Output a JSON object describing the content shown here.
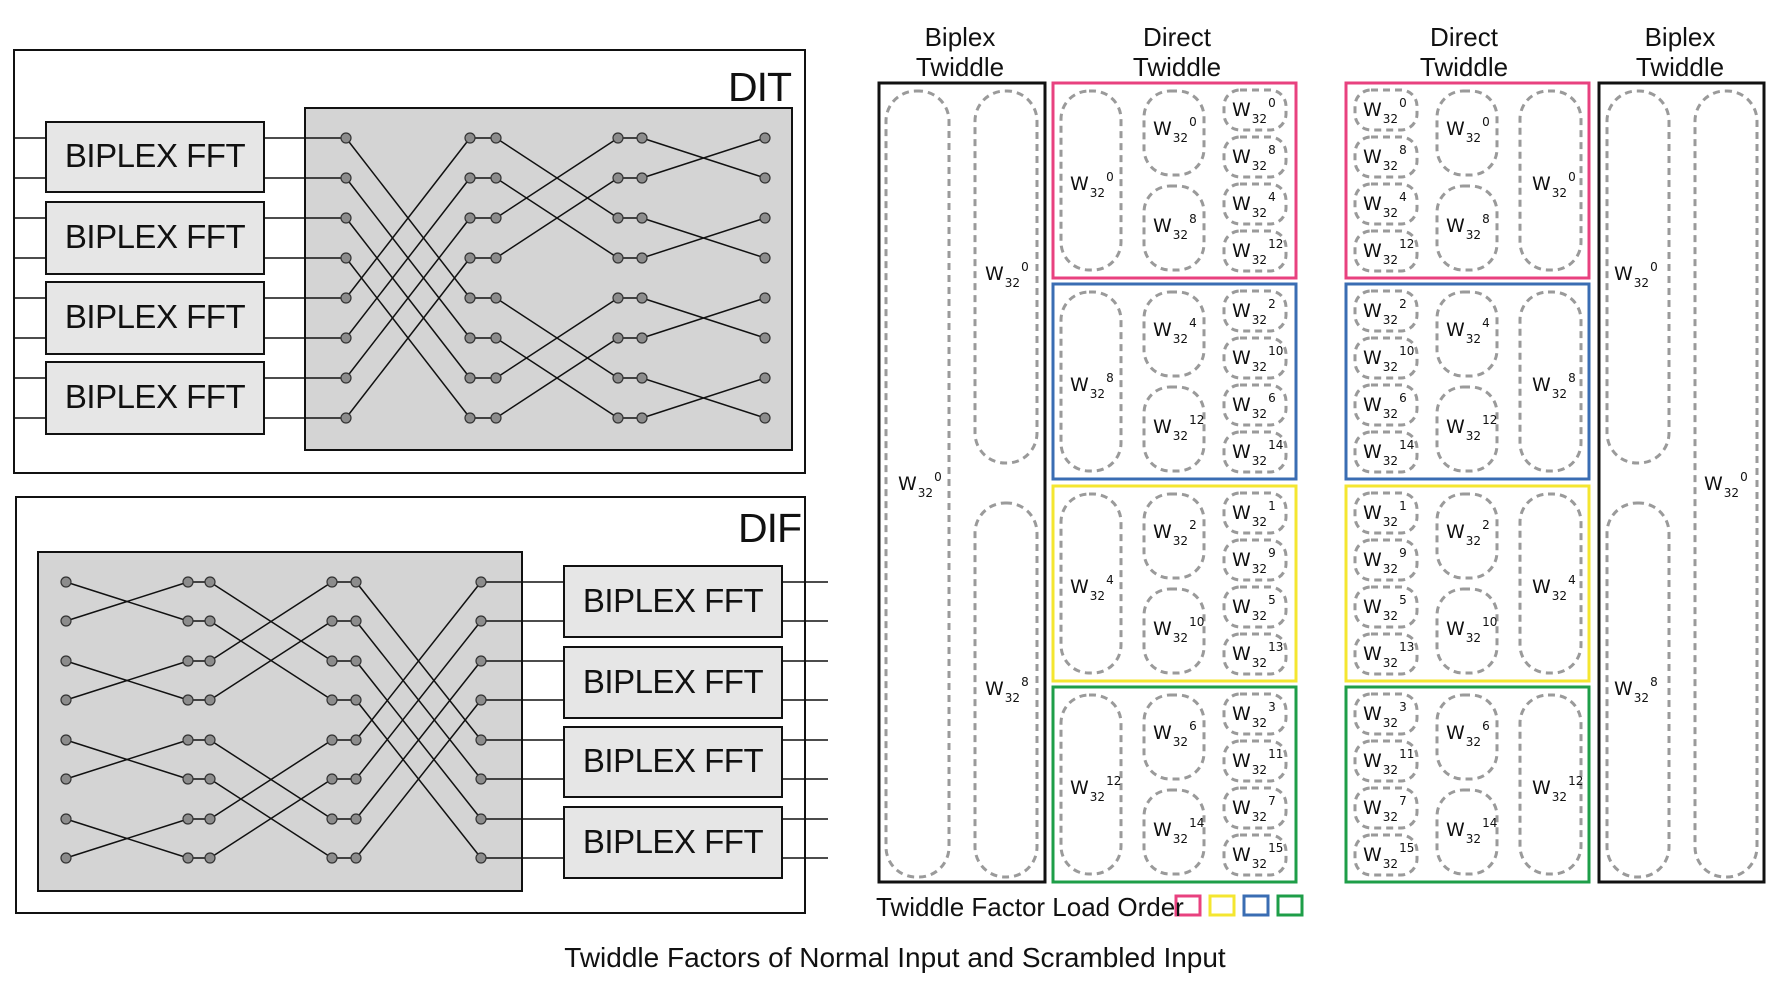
{
  "dit": {
    "title": "DIT",
    "block_label": "BIPLEX FFT"
  },
  "dif": {
    "title": "DIF",
    "block_label": "BIPLEX FFT"
  },
  "headers": {
    "biplex_twiddle": [
      "Biplex",
      "Twiddle"
    ],
    "direct_twiddle": [
      "Direct",
      "Twiddle"
    ]
  },
  "twiddle_base": "W",
  "twiddle_sub": "32",
  "normal_table": {
    "biplex_outer": [
      "0"
    ],
    "biplex_inner": [
      "0",
      "8"
    ],
    "groups": [
      {
        "color": "#e8417f",
        "col1": [
          "0"
        ],
        "col2": [
          "0",
          "8"
        ],
        "col3": [
          "0",
          "8",
          "4",
          "12"
        ]
      },
      {
        "color": "#3a6db3",
        "col1": [
          "8"
        ],
        "col2": [
          "4",
          "12"
        ],
        "col3": [
          "2",
          "10",
          "6",
          "14"
        ]
      },
      {
        "color": "#f4e630",
        "col1": [
          "4"
        ],
        "col2": [
          "2",
          "10"
        ],
        "col3": [
          "1",
          "9",
          "5",
          "13"
        ]
      },
      {
        "color": "#1e9e48",
        "col1": [
          "12"
        ],
        "col2": [
          "6",
          "14"
        ],
        "col3": [
          "3",
          "11",
          "7",
          "15"
        ]
      }
    ]
  },
  "scrambled_table": {
    "biplex_inner": [
      "0",
      "8"
    ],
    "biplex_outer": [
      "0"
    ],
    "groups": [
      {
        "color": "#e8417f",
        "col1": [
          "0",
          "8",
          "4",
          "12"
        ],
        "col2": [
          "0",
          "8"
        ],
        "col3": [
          "0"
        ]
      },
      {
        "color": "#3a6db3",
        "col1": [
          "2",
          "10",
          "6",
          "14"
        ],
        "col2": [
          "4",
          "12"
        ],
        "col3": [
          "8"
        ]
      },
      {
        "color": "#f4e630",
        "col1": [
          "1",
          "9",
          "5",
          "13"
        ],
        "col2": [
          "2",
          "10"
        ],
        "col3": [
          "4"
        ]
      },
      {
        "color": "#1e9e48",
        "col1": [
          "3",
          "11",
          "7",
          "15"
        ],
        "col2": [
          "6",
          "14"
        ],
        "col3": [
          "12"
        ]
      }
    ]
  },
  "legend": {
    "text": "Twiddle Factor Load Order",
    "colors": [
      "#e8417f",
      "#f4e630",
      "#3a6db3",
      "#1e9e48"
    ]
  },
  "caption": "Twiddle Factors of Normal Input and Scrambled Input",
  "colors": {
    "block_fill": "#e6e6e6",
    "network_fill": "#d4d4d4",
    "node_fill": "#8c8c8c",
    "dashed": "#9a9a9a"
  }
}
